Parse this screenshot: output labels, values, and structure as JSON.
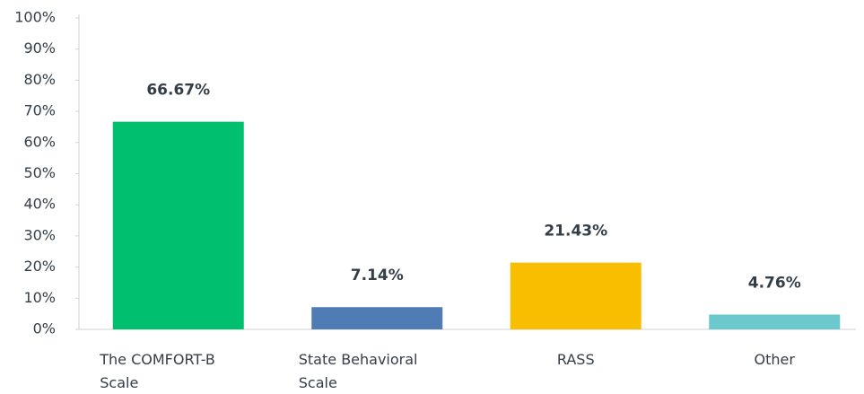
{
  "chart_data": {
    "type": "bar",
    "categories": [
      "The COMFORT-B Scale",
      "State Behavioral Scale",
      "RASS",
      "Other"
    ],
    "values": [
      66.67,
      7.14,
      21.43,
      4.76
    ],
    "value_labels": [
      "66.67%",
      "7.14%",
      "21.43%",
      "4.76%"
    ],
    "colors": [
      "#00bf6f",
      "#507cb6",
      "#f9be00",
      "#6bc8cd"
    ],
    "ylim": [
      0,
      100
    ],
    "yticks": [
      {
        "value": 0,
        "label": "0%"
      },
      {
        "value": 10,
        "label": "10%"
      },
      {
        "value": 20,
        "label": "20%"
      },
      {
        "value": 30,
        "label": "30%"
      },
      {
        "value": 40,
        "label": "40%"
      },
      {
        "value": 50,
        "label": "50%"
      },
      {
        "value": 60,
        "label": "60%"
      },
      {
        "value": 70,
        "label": "70%"
      },
      {
        "value": 80,
        "label": "80%"
      },
      {
        "value": 90,
        "label": "90%"
      },
      {
        "value": 100,
        "label": "100%"
      }
    ],
    "grid": false
  }
}
